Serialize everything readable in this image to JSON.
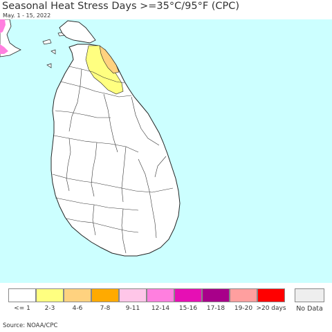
{
  "title": "Seasonal Heat Stress Days >=35°C/95°F (CPC)",
  "date_range": "May. 1 - 15, 2022",
  "source": "Source: NOAA/CPC",
  "colors": {
    "ocean": "#ccffff",
    "land": "#ffffff",
    "border": "#222222"
  },
  "legend": {
    "items": [
      {
        "label": "<= 1",
        "color": "#ffffff"
      },
      {
        "label": "2-3",
        "color": "#ffff80"
      },
      {
        "label": "4-6",
        "color": "#ffd27f"
      },
      {
        "label": "7-8",
        "color": "#ffaa00"
      },
      {
        "label": "9-11",
        "color": "#ffc6e8"
      },
      {
        "label": "12-14",
        "color": "#ff7fdf"
      },
      {
        "label": "15-16",
        "color": "#e60fb4"
      },
      {
        "label": "17-18",
        "color": "#a8008a"
      },
      {
        "label": "19-20",
        "color": "#ff9f9f"
      },
      {
        "label": ">20 days",
        "color": "#ff0000"
      }
    ],
    "no_data": {
      "label": "No Data",
      "color": "#eeeeee"
    }
  }
}
